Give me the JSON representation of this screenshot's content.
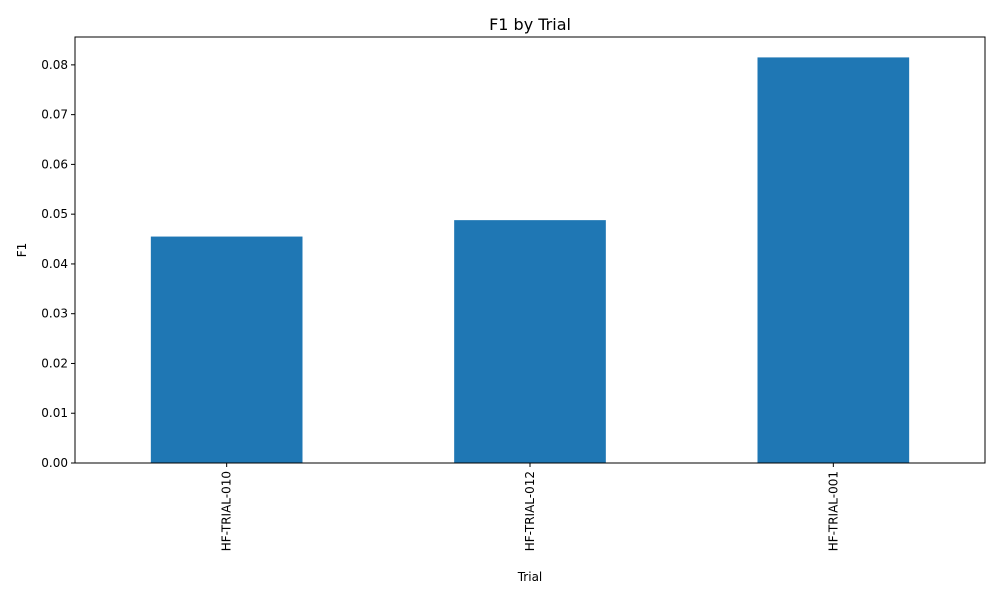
{
  "chart_data": {
    "type": "bar",
    "title": "F1 by Trial",
    "xlabel": "Trial",
    "ylabel": "F1",
    "categories": [
      "HF-TRIAL-010",
      "HF-TRIAL-012",
      "HF-TRIAL-001"
    ],
    "values": [
      0.0455,
      0.0488,
      0.0815
    ],
    "ylim": [
      0,
      0.0856
    ],
    "yticks": [
      0.0,
      0.01,
      0.02,
      0.03,
      0.04,
      0.05,
      0.06,
      0.07,
      0.08
    ],
    "ytick_labels": [
      "0.00",
      "0.01",
      "0.02",
      "0.03",
      "0.04",
      "0.05",
      "0.06",
      "0.07",
      "0.08"
    ],
    "x_tick_rotation": "vertical",
    "grid": false,
    "legend": "none",
    "bar_color": "#1f77b4"
  }
}
